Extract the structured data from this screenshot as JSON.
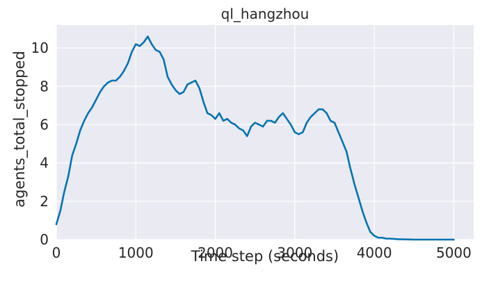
{
  "chart_data": {
    "type": "line",
    "title": "ql_hangzhou",
    "xlabel": "Time step (seconds)",
    "ylabel": "agents_total_stopped",
    "xlim": [
      0,
      5250
    ],
    "ylim": [
      0,
      11.2
    ],
    "xticks": [
      0,
      1000,
      2000,
      3000,
      4000,
      5000
    ],
    "yticks": [
      0,
      2,
      4,
      6,
      8,
      10
    ],
    "grid": true,
    "series_color": "#0173b2",
    "background_color": "#eaeaf2",
    "series": [
      {
        "x": [
          0,
          50,
          100,
          150,
          200,
          250,
          300,
          350,
          400,
          450,
          500,
          550,
          600,
          650,
          700,
          750,
          800,
          850,
          900,
          950,
          1000,
          1050,
          1100,
          1150,
          1200,
          1250,
          1300,
          1350,
          1400,
          1450,
          1500,
          1550,
          1600,
          1650,
          1700,
          1750,
          1800,
          1850,
          1900,
          1950,
          2000,
          2050,
          2100,
          2150,
          2200,
          2250,
          2300,
          2350,
          2400,
          2450,
          2500,
          2550,
          2600,
          2650,
          2700,
          2750,
          2800,
          2850,
          2900,
          2950,
          3000,
          3050,
          3100,
          3150,
          3200,
          3250,
          3300,
          3350,
          3400,
          3450,
          3500,
          3550,
          3600,
          3650,
          3700,
          3750,
          3800,
          3850,
          3900,
          3950,
          4000,
          4050,
          4100,
          4150,
          4200,
          4300,
          4400,
          4500,
          4600,
          4700,
          4800,
          4900,
          5000
        ],
        "y": [
          0.8,
          1.5,
          2.5,
          3.3,
          4.4,
          5.0,
          5.7,
          6.2,
          6.6,
          6.9,
          7.3,
          7.7,
          8.0,
          8.2,
          8.3,
          8.3,
          8.5,
          8.8,
          9.2,
          9.8,
          10.2,
          10.1,
          10.3,
          10.6,
          10.2,
          9.9,
          9.8,
          9.4,
          8.5,
          8.1,
          7.8,
          7.6,
          7.7,
          8.1,
          8.2,
          8.3,
          7.9,
          7.2,
          6.6,
          6.5,
          6.3,
          6.6,
          6.2,
          6.3,
          6.1,
          6.0,
          5.8,
          5.7,
          5.4,
          5.9,
          6.1,
          6.0,
          5.9,
          6.2,
          6.2,
          6.1,
          6.4,
          6.6,
          6.3,
          6.0,
          5.6,
          5.5,
          5.6,
          6.1,
          6.4,
          6.6,
          6.8,
          6.8,
          6.6,
          6.2,
          6.1,
          5.6,
          5.1,
          4.6,
          3.7,
          2.9,
          2.2,
          1.5,
          0.9,
          0.4,
          0.2,
          0.1,
          0.1,
          0.05,
          0.05,
          0.02,
          0.01,
          0.0,
          0.0,
          0.0,
          0.0,
          0.0,
          0.0
        ]
      }
    ]
  }
}
